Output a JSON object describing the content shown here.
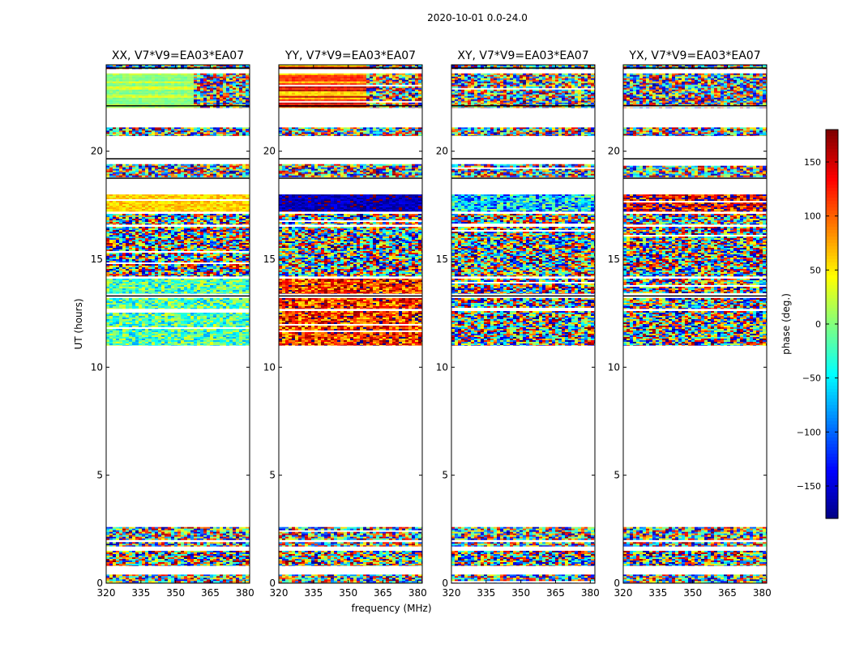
{
  "figure": {
    "suptitle": "2020-10-01 0.0-24.0"
  },
  "chart_data": {
    "type": "heatmap",
    "xlabel": "frequency (MHz)",
    "ylabel": "UT (hours)",
    "xlim": [
      320,
      382
    ],
    "ylim": [
      0,
      24
    ],
    "xticks": [
      320,
      335,
      350,
      365,
      380
    ],
    "yticks": [
      0,
      5,
      10,
      15,
      20
    ],
    "colormap": "jet",
    "colorbar": {
      "label": "phase (deg.)",
      "range": [
        -180,
        180
      ],
      "ticks": [
        150,
        100,
        50,
        0,
        -50,
        -100,
        -150
      ],
      "tick_labels": [
        "150",
        "100",
        "50",
        "0",
        "−50",
        "−100",
        "−150"
      ],
      "colors": [
        "#00007f",
        "#0000ff",
        "#007fff",
        "#00ffff",
        "#7fff7f",
        "#ffff00",
        "#ff7f00",
        "#ff0000",
        "#7f0000"
      ]
    },
    "panels": [
      {
        "title": "XX, V7*V9=EA03*EA07",
        "character": [
          {
            "ut": [
              22.4,
              23.3
            ],
            "mode": "stripes",
            "palette": [
              0,
              20,
              35
            ]
          },
          {
            "ut": [
              17.0,
              18.2
            ],
            "mode": "phase",
            "center": 60,
            "spread": 25
          },
          {
            "ut": [
              11.0,
              14.2
            ],
            "mode": "phase",
            "center": -20,
            "spread": 60
          }
        ]
      },
      {
        "title": "YY, V7*V9=EA03*EA07",
        "character": [
          {
            "ut": [
              22.4,
              24.0
            ],
            "mode": "stripes",
            "palette": [
              160,
              120,
              60
            ]
          },
          {
            "ut": [
              17.0,
              18.2
            ],
            "mode": "phase",
            "center": -160,
            "spread": 25
          },
          {
            "ut": [
              11.0,
              14.2
            ],
            "mode": "phase",
            "center": 120,
            "spread": 70
          }
        ]
      },
      {
        "title": "XY, V7*V9=EA03*EA07",
        "character": [
          {
            "ut": [
              17.0,
              18.2
            ],
            "mode": "phase",
            "center": -60,
            "spread": 80
          }
        ]
      },
      {
        "title": "YX, V7*V9=EA03*EA07",
        "character": [
          {
            "ut": [
              17.0,
              18.2
            ],
            "mode": "phase",
            "center": 140,
            "spread": 80
          }
        ]
      }
    ],
    "data_rows_ut": [
      [
        0.0,
        0.4
      ],
      [
        0.8,
        1.5
      ],
      [
        1.7,
        1.9
      ],
      [
        2.0,
        2.6
      ],
      [
        11.0,
        12.6
      ],
      [
        12.7,
        13.2
      ],
      [
        13.4,
        14.1
      ],
      [
        14.2,
        16.5
      ],
      [
        16.6,
        17.1
      ],
      [
        17.2,
        18.0
      ],
      [
        18.8,
        19.4
      ],
      [
        20.7,
        21.1
      ],
      [
        22.0,
        23.6
      ],
      [
        23.8,
        24.0
      ]
    ],
    "empty_ut_ranges": [
      [
        2.6,
        11.0
      ],
      [
        21.1,
        21.9
      ]
    ],
    "black_lines_ut": [
      19.65,
      18.75,
      13.3,
      22.1,
      23.85
    ]
  }
}
